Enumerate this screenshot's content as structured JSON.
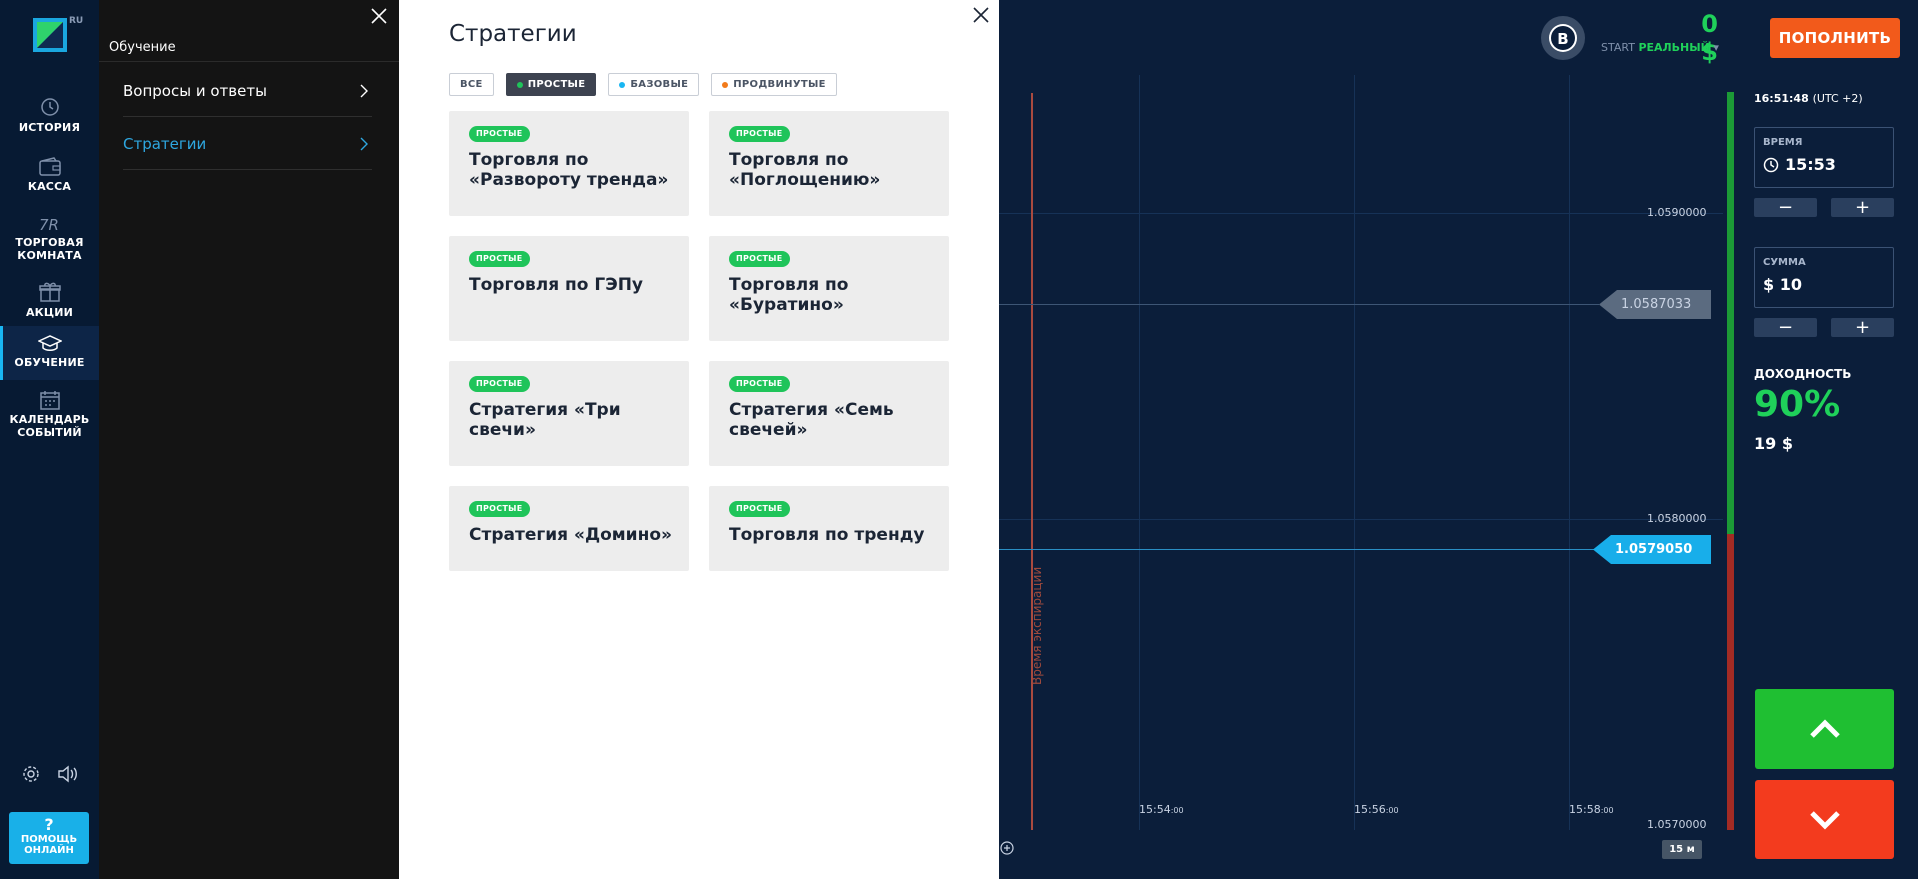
{
  "nav": {
    "logo_badge": "RU",
    "items": [
      {
        "label": "ИСТОРИЯ",
        "icon": "history-icon"
      },
      {
        "label": "КАССА",
        "icon": "wallet-icon"
      },
      {
        "label": "ТОРГОВАЯ КОМНАТА",
        "icon": "trading-room-icon"
      },
      {
        "label": "АКЦИИ",
        "icon": "gift-icon"
      },
      {
        "label": "ОБУЧЕНИЕ",
        "icon": "graduation-cap-icon",
        "active": true
      },
      {
        "label": "КАЛЕНДАРЬ СОБЫТИЙ",
        "icon": "calendar-icon"
      }
    ],
    "help": {
      "glyph": "?",
      "label": "ПОМОЩЬ ОНЛАЙН"
    }
  },
  "subpanel": {
    "title": "Обучение",
    "items": [
      {
        "label": "Вопросы и ответы"
      },
      {
        "label": "Стратегии",
        "active": true
      }
    ]
  },
  "main": {
    "title": "Стратегии",
    "filters": [
      {
        "label": "ВСЕ",
        "dot": null
      },
      {
        "label": "ПРОСТЫЕ",
        "dot": "#1fc45a",
        "active": true
      },
      {
        "label": "БАЗОВЫЕ",
        "dot": "#19b6f2"
      },
      {
        "label": "ПРОДВИНУТЫЕ",
        "dot": "#f27b1b"
      }
    ],
    "cards": [
      {
        "badge": "ПРОСТЫЕ",
        "title": "Торговля по «Развороту тренда»"
      },
      {
        "badge": "ПРОСТЫЕ",
        "title": "Торговля по «Поглощению»"
      },
      {
        "badge": "ПРОСТЫЕ",
        "title": "Торговля по ГЭПу"
      },
      {
        "badge": "ПРОСТЫЕ",
        "title": "Торговля по «Буратино»"
      },
      {
        "badge": "ПРОСТЫЕ",
        "title": "Стратегия «Три свечи»"
      },
      {
        "badge": "ПРОСТЫЕ",
        "title": "Стратегия «Семь свечей»"
      },
      {
        "badge": "ПРОСТЫЕ",
        "title": "Стратегия «Домино»"
      },
      {
        "badge": "ПРОСТЫЕ",
        "title": "Торговля по тренду"
      }
    ]
  },
  "topbar": {
    "account_letter": "B",
    "balance": "0 $",
    "account_prefix": "START",
    "account_type": "РЕАЛЬНЫЙ",
    "account_caret": "▾",
    "deposit_label": "ПОПОЛНИТЬ"
  },
  "chart": {
    "price_ticks": [
      "1.0590000",
      "1.0580000",
      "1.0570000"
    ],
    "time_ticks": [
      {
        "main": "15:54",
        "sub": ":00"
      },
      {
        "main": "15:56",
        "sub": ":00"
      },
      {
        "main": "15:58",
        "sub": ":00"
      }
    ],
    "strike_price": "1.0587033",
    "current_price": "1.0579050",
    "expiration_label": "Время экспирации",
    "timeframe": "15 м"
  },
  "right_panel": {
    "clock_time": "16:51:48",
    "clock_tz": "(UTC +2)",
    "time_label": "ВРЕМЯ",
    "time_value": "15:53",
    "amount_label": "СУММА",
    "amount_value": "$ 10",
    "minus": "−",
    "plus": "+",
    "yield_label": "ДОХОДНОСТЬ",
    "yield_value": "90%",
    "yield_amount": "19 $"
  },
  "colors": {
    "accent_blue": "#19b6f2",
    "green": "#1fd15a",
    "deposit_orange": "#f25a1b",
    "down_red": "#f33b1e",
    "up_green": "#1fbf32"
  }
}
